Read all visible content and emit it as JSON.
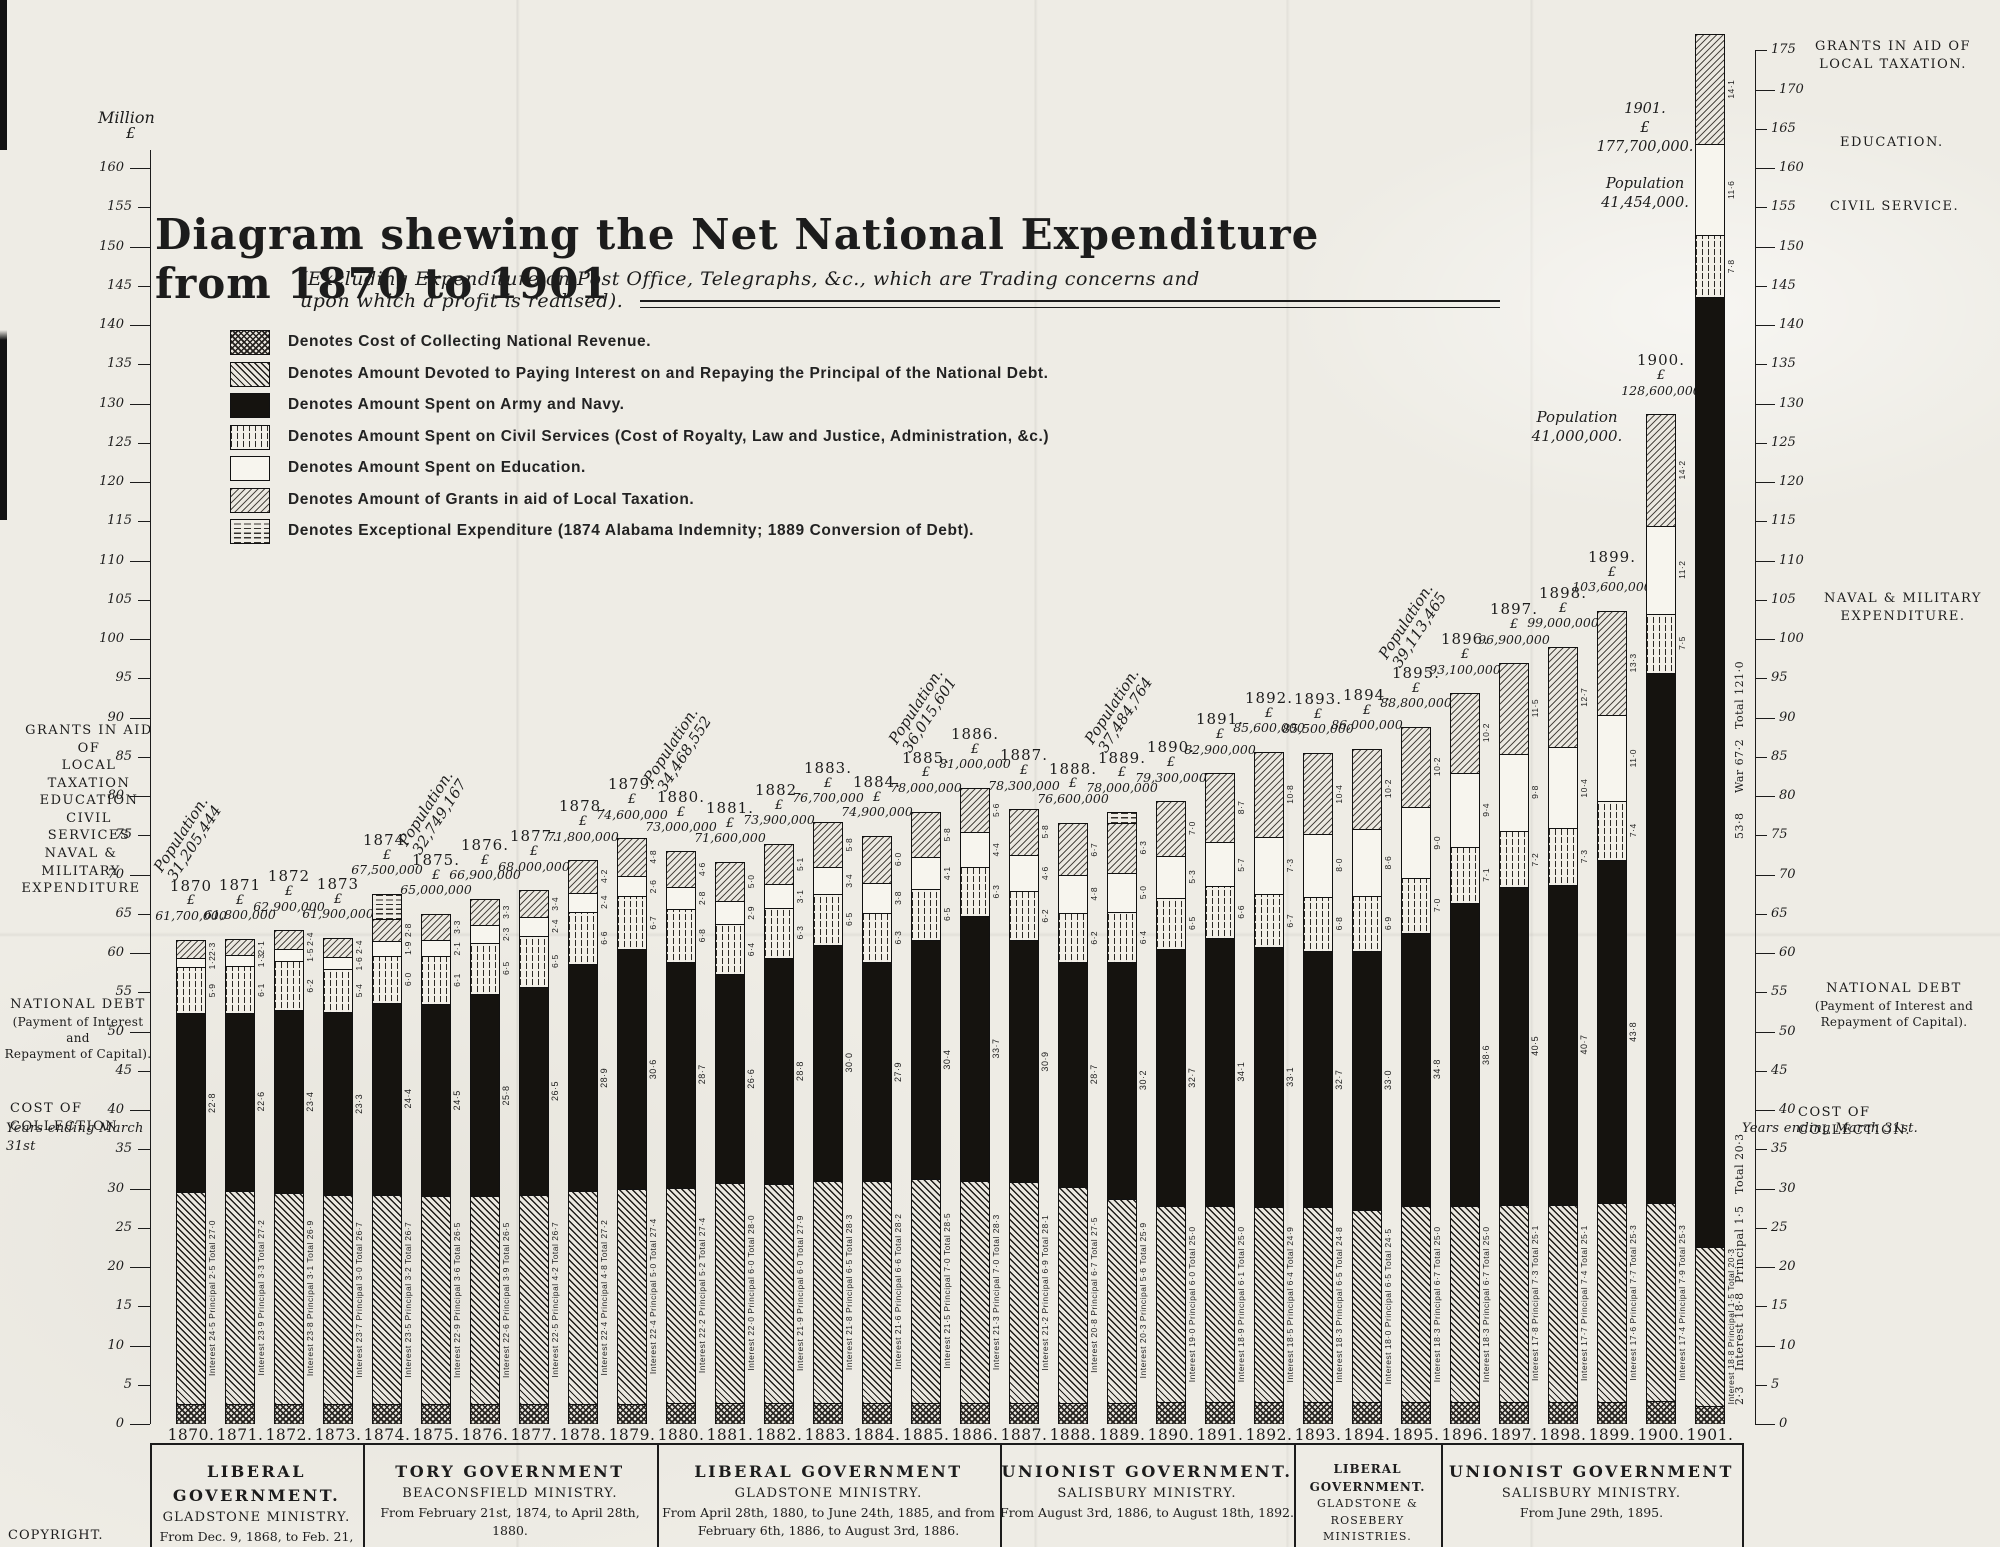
{
  "header": {
    "title": "Diagram shewing the Net National Expenditure from 1870 to 1901",
    "subtitle": "(Excluding Expenditure on Post Office, Telegraphs, &c., which are Trading concerns and upon which a profit is realised).",
    "copyright": "COPYRIGHT."
  },
  "legend": [
    {
      "pattern": "crosshatch-swatch",
      "label": "Denotes Cost of Collecting National Revenue.",
      "class": "f-collection"
    },
    {
      "pattern": "diagonal-swatch",
      "label": "Denotes Amount Devoted to Paying Interest on and Repaying the Principal of the National Debt.",
      "class": "f-debt"
    },
    {
      "pattern": "solid-black-swatch",
      "label": "Denotes Amount Spent on Army and Navy.",
      "class": "f-war"
    },
    {
      "pattern": "dotted-swatch",
      "label": "Denotes Amount Spent on Civil Services (Cost of Royalty, Law and Justice, Administration, &c.)",
      "class": "f-civil"
    },
    {
      "pattern": "white-swatch",
      "label": "Denotes Amount Spent on Education.",
      "class": "f-education"
    },
    {
      "pattern": "light-hatch-swatch",
      "label": "Denotes Amount of Grants in aid of Local Taxation.",
      "class": "f-grants"
    },
    {
      "pattern": "dashed-swatch",
      "label": "Denotes Exceptional Expenditure (1874 Alabama Indemnity; 1889 Conversion of Debt).",
      "class": "f-exceptional"
    }
  ],
  "axis_left": {
    "heading_1": "Million",
    "heading_2": "£",
    "min": 0,
    "max": 160,
    "step": 5
  },
  "axis_right": {
    "min": 0,
    "max": 175,
    "step": 5
  },
  "labels_left": [
    {
      "id": "grants",
      "lines": [
        "GRANTS IN AID OF",
        "LOCAL TAXATION",
        "EDUCATION",
        "CIVIL SERVICES"
      ]
    },
    {
      "id": "military",
      "lines": [
        "NAVAL & MILITARY",
        "EXPENDITURE"
      ]
    },
    {
      "id": "debt",
      "lines": [
        "NATIONAL DEBT",
        "(Payment of Interest and",
        "Repayment of Capital)."
      ]
    },
    {
      "id": "collection",
      "lines": [
        "COST OF COLLECTION"
      ]
    },
    {
      "id": "years",
      "lines": [
        "Years ending March 31st"
      ]
    }
  ],
  "labels_right": [
    {
      "id": "grants",
      "lines": [
        "GRANTS IN AID OF",
        "LOCAL TAXATION."
      ]
    },
    {
      "id": "education",
      "lines": [
        "EDUCATION."
      ]
    },
    {
      "id": "civil",
      "lines": [
        "CIVIL SERVICE."
      ]
    },
    {
      "id": "military",
      "lines": [
        "NAVAL & MILITARY",
        "EXPENDITURE."
      ]
    },
    {
      "id": "debt",
      "lines": [
        "NATIONAL DEBT",
        "(Payment of Interest and",
        "Repayment of Capital)."
      ]
    },
    {
      "id": "collection",
      "lines": [
        "COST OF COLLECTION."
      ]
    },
    {
      "id": "years",
      "lines": [
        "Years ending March 31st."
      ]
    }
  ],
  "right_annotations": [
    {
      "id": "total-121",
      "text": "Total 121·0"
    },
    {
      "id": "war-67",
      "text": "War 67·2"
    },
    {
      "id": "ordinary-53",
      "text": "53·8"
    },
    {
      "id": "total-20",
      "text": "Total 20·3"
    },
    {
      "id": "principal-15",
      "text": "Principal 1·5"
    },
    {
      "id": "interest-188",
      "text": "Interest 18·8"
    },
    {
      "id": "coll-23",
      "text": "2·3"
    }
  ],
  "block_1901": {
    "lines": [
      "1901.",
      "£",
      "177,700,000.",
      "",
      "Population",
      "41,454,000."
    ]
  },
  "block_1900_population": {
    "lines": [
      "Population",
      "41,000,000."
    ]
  },
  "governments": [
    {
      "name": "LIBERAL GOVERNMENT.",
      "ministry": "GLADSTONE MINISTRY.",
      "dates": "From Dec. 9, 1868, to Feb. 21, 1874.",
      "span": [
        1870,
        1874
      ]
    },
    {
      "name": "TORY GOVERNMENT",
      "ministry": "BEACONSFIELD MINISTRY.",
      "dates": "From February 21st, 1874, to April 28th, 1880.",
      "span": [
        1874,
        1880
      ]
    },
    {
      "name": "LIBERAL GOVERNMENT",
      "ministry": "GLADSTONE MINISTRY.",
      "dates": "From April 28th, 1880, to June 24th, 1885, and from February 6th, 1886, to August 3rd, 1886.",
      "span": [
        1880,
        1887
      ]
    },
    {
      "name": "UNIONIST GOVERNMENT.",
      "ministry": "SALISBURY MINISTRY.",
      "dates": "From August 3rd, 1886, to August 18th, 1892.",
      "span": [
        1887,
        1893
      ]
    },
    {
      "name": "LIBERAL GOVERNMENT.",
      "ministry": "GLADSTONE & ROSEBERY MINISTRIES.",
      "dates": "From August 18th, 1892, to June 29th, 1895.",
      "span": [
        1893,
        1896
      ]
    },
    {
      "name": "UNIONIST GOVERNMENT",
      "ministry": "SALISBURY MINISTRY.",
      "dates": "From June 29th, 1895.",
      "span": [
        1896,
        1902
      ]
    }
  ],
  "chart_data": {
    "type": "bar",
    "stacked": true,
    "unit": "Million £",
    "ylim": [
      0,
      160
    ],
    "ylim_right": [
      0,
      175
    ],
    "categories": [
      1870,
      1871,
      1872,
      1873,
      1874,
      1875,
      1876,
      1877,
      1878,
      1879,
      1880,
      1881,
      1882,
      1883,
      1884,
      1885,
      1886,
      1887,
      1888,
      1889,
      1890,
      1891,
      1892,
      1893,
      1894,
      1895,
      1896,
      1897,
      1898,
      1899,
      1900,
      1901
    ],
    "total_labels": [
      "61,700,000",
      "61,800,000",
      "62,900,000",
      "61,900,000",
      "67,500,000",
      "65,000,000",
      "66,900,000",
      "68,000,000",
      "71,800,000",
      "74,600,000",
      "73,000,000",
      "71,600,000",
      "73,900,000",
      "76,700,000",
      "74,900,000",
      "78,000,000",
      "81,000,000",
      "78,300,000",
      "76,600,000",
      "78,000,000",
      "79,300,000",
      "82,900,000",
      "85,600,000",
      "85,500,000",
      "86,000,000",
      "88,800,000",
      "93,100,000",
      "96,900,000",
      "99,000,000",
      "103,600,000",
      "128,600,000",
      "177,700,000"
    ],
    "populations": {
      "1870": "31,205,444",
      "1875": "32,749,167",
      "1880": "34,468,552",
      "1885": "36,015,601",
      "1889": "37,484,764",
      "1895": "39,113,465",
      "1900": "41,000,000",
      "1901": "41,454,000"
    },
    "series": [
      {
        "name": "Cost of Collection",
        "key": "collection",
        "values": [
          2.5,
          2.5,
          2.5,
          2.5,
          2.5,
          2.5,
          2.5,
          2.5,
          2.5,
          2.5,
          2.7,
          2.7,
          2.7,
          2.7,
          2.7,
          2.7,
          2.7,
          2.7,
          2.7,
          2.7,
          2.8,
          2.8,
          2.8,
          2.8,
          2.8,
          2.8,
          2.8,
          2.8,
          2.8,
          2.8,
          2.9,
          2.3
        ]
      },
      {
        "name": "National Debt (Interest and Principal)",
        "key": "debt",
        "values": [
          27.0,
          27.2,
          26.9,
          26.7,
          26.7,
          26.5,
          26.5,
          26.7,
          27.2,
          27.4,
          27.4,
          28.0,
          27.9,
          28.3,
          28.2,
          28.5,
          28.3,
          28.1,
          27.5,
          25.9,
          25.0,
          25.0,
          24.9,
          24.8,
          24.5,
          25.0,
          25.0,
          25.1,
          25.1,
          25.3,
          25.3,
          20.3
        ]
      },
      {
        "name": "Army and Navy",
        "key": "war",
        "values": [
          22.8,
          22.6,
          23.4,
          23.3,
          24.4,
          24.5,
          25.8,
          26.5,
          28.9,
          30.6,
          28.7,
          26.6,
          28.8,
          30.0,
          27.9,
          30.4,
          33.7,
          30.9,
          28.7,
          30.2,
          32.7,
          34.1,
          33.1,
          32.7,
          33.0,
          34.8,
          38.6,
          40.5,
          40.7,
          43.8,
          67.5,
          121.0
        ]
      },
      {
        "name": "Civil Services",
        "key": "civil",
        "values": [
          5.9,
          6.1,
          6.2,
          5.4,
          6.0,
          6.1,
          6.5,
          6.5,
          6.6,
          6.7,
          6.8,
          6.4,
          6.3,
          6.5,
          6.3,
          6.5,
          6.3,
          6.2,
          6.2,
          6.4,
          6.5,
          6.6,
          6.7,
          6.8,
          6.9,
          7.0,
          7.1,
          7.2,
          7.3,
          7.4,
          7.5,
          7.8
        ]
      },
      {
        "name": "Education",
        "key": "education",
        "values": [
          1.2,
          1.3,
          1.5,
          1.6,
          1.9,
          2.1,
          2.3,
          2.4,
          2.4,
          2.6,
          2.8,
          2.9,
          3.1,
          3.4,
          3.8,
          4.1,
          4.4,
          4.6,
          4.8,
          5.0,
          5.3,
          5.7,
          7.3,
          8.0,
          8.6,
          9.0,
          9.4,
          9.8,
          10.4,
          11.0,
          11.2,
          11.6
        ]
      },
      {
        "name": "Grants in aid of Local Taxation",
        "key": "grants",
        "values": [
          2.3,
          2.1,
          2.4,
          2.4,
          2.8,
          3.3,
          3.3,
          3.4,
          4.2,
          4.8,
          4.6,
          5.0,
          5.1,
          5.8,
          6.0,
          5.8,
          5.6,
          5.8,
          6.7,
          6.3,
          7.0,
          8.7,
          10.8,
          10.4,
          10.2,
          10.2,
          10.2,
          11.5,
          12.7,
          13.3,
          14.2,
          14.1
        ]
      },
      {
        "name": "Exceptional Expenditure",
        "key": "exceptional",
        "values": [
          0,
          0,
          0,
          0,
          3.2,
          0,
          0,
          0,
          0,
          0,
          0,
          0,
          0,
          0,
          0,
          0,
          0,
          0,
          0,
          1.5,
          0,
          0,
          0,
          0,
          0,
          0,
          0,
          0,
          0,
          0,
          0,
          0
        ]
      }
    ],
    "debt_detail": {
      "interest": [
        24.5,
        23.9,
        23.8,
        23.7,
        23.5,
        22.9,
        22.6,
        22.5,
        22.4,
        22.4,
        22.2,
        22.0,
        21.9,
        21.8,
        21.6,
        21.5,
        21.3,
        21.2,
        20.8,
        20.3,
        19.0,
        18.9,
        18.5,
        18.3,
        18.0,
        18.3,
        18.3,
        17.8,
        17.7,
        17.6,
        17.4,
        18.8
      ],
      "principal": [
        2.5,
        3.3,
        3.1,
        3.0,
        3.2,
        3.6,
        3.9,
        4.2,
        4.8,
        5.0,
        5.2,
        6.0,
        6.0,
        6.5,
        6.6,
        7.0,
        7.0,
        6.9,
        6.7,
        5.6,
        6.0,
        6.1,
        6.4,
        6.5,
        6.5,
        6.7,
        6.7,
        7.3,
        7.4,
        7.7,
        7.9,
        1.5
      ]
    },
    "naval_military_1901": {
      "total": "121·0",
      "war": "67·2",
      "ordinary": "53·8"
    },
    "title": "Diagram shewing the Net National Expenditure from 1870 to 1901",
    "grid": false,
    "legend_position": "top-left"
  }
}
